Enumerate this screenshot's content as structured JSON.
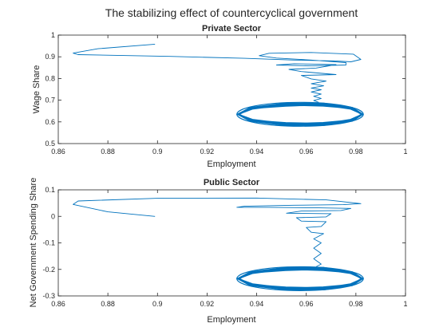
{
  "figure": {
    "title": "The stabilizing effect of countercyclical government"
  },
  "chart_data": [
    {
      "type": "line",
      "title": "Private Sector",
      "xlabel": "Employment",
      "ylabel": "Wage Share",
      "xlim": [
        0.86,
        1.0
      ],
      "ylim": [
        0.5,
        1.0
      ],
      "xticks": [
        "0.86",
        "0.88",
        "0.9",
        "0.92",
        "0.94",
        "0.96",
        "0.98",
        "1"
      ],
      "yticks": [
        "0.5",
        "0.6",
        "0.7",
        "0.8",
        "0.9",
        "1"
      ],
      "grid": false,
      "series": [
        {
          "color": "#0072BD",
          "points": [
            [
              0.899,
              0.958
            ],
            [
              0.876,
              0.937
            ],
            [
              0.866,
              0.917
            ],
            [
              0.868,
              0.91
            ],
            [
              0.905,
              0.902
            ],
            [
              0.935,
              0.893
            ],
            [
              0.955,
              0.885
            ],
            [
              0.972,
              0.881
            ],
            [
              0.978,
              0.877
            ],
            [
              0.982,
              0.888
            ],
            [
              0.979,
              0.912
            ],
            [
              0.962,
              0.92
            ],
            [
              0.945,
              0.916
            ],
            [
              0.941,
              0.905
            ],
            [
              0.948,
              0.894
            ],
            [
              0.962,
              0.885
            ],
            [
              0.976,
              0.873
            ],
            [
              0.976,
              0.862
            ],
            [
              0.962,
              0.858
            ],
            [
              0.948,
              0.862
            ],
            [
              0.955,
              0.868
            ],
            [
              0.972,
              0.864
            ],
            [
              0.964,
              0.848
            ],
            [
              0.953,
              0.842
            ],
            [
              0.958,
              0.832
            ],
            [
              0.972,
              0.818
            ],
            [
              0.958,
              0.814
            ],
            [
              0.962,
              0.798
            ],
            [
              0.968,
              0.788
            ],
            [
              0.962,
              0.776
            ],
            [
              0.967,
              0.766
            ],
            [
              0.962,
              0.756
            ],
            [
              0.966,
              0.748
            ],
            [
              0.962,
              0.738
            ],
            [
              0.966,
              0.728
            ],
            [
              0.963,
              0.718
            ],
            [
              0.966,
              0.708
            ],
            [
              0.963,
              0.698
            ],
            [
              0.965,
              0.69
            ]
          ]
        }
      ],
      "attractor": {
        "description": "dense limit cycle",
        "x_range": [
          0.932,
          0.983
        ],
        "y_range": [
          0.58,
          0.69
        ],
        "center": [
          0.96,
          0.635
        ]
      }
    },
    {
      "type": "line",
      "title": "Public Sector",
      "xlabel": "Employment",
      "ylabel": "Net Government Spending Share",
      "xlim": [
        0.86,
        1.0
      ],
      "ylim": [
        -0.3,
        0.1
      ],
      "xticks": [
        "0.86",
        "0.88",
        "0.9",
        "0.92",
        "0.94",
        "0.96",
        "0.98",
        "1"
      ],
      "yticks": [
        "-0.3",
        "-0.2",
        "-0.1",
        "0",
        "0.1"
      ],
      "grid": false,
      "series": [
        {
          "color": "#0072BD",
          "points": [
            [
              0.899,
              0.0
            ],
            [
              0.88,
              0.017
            ],
            [
              0.866,
              0.045
            ],
            [
              0.868,
              0.058
            ],
            [
              0.9,
              0.068
            ],
            [
              0.94,
              0.069
            ],
            [
              0.968,
              0.062
            ],
            [
              0.982,
              0.048
            ],
            [
              0.975,
              0.044
            ],
            [
              0.955,
              0.042
            ],
            [
              0.935,
              0.038
            ],
            [
              0.932,
              0.034
            ],
            [
              0.945,
              0.034
            ],
            [
              0.965,
              0.032
            ],
            [
              0.978,
              0.03
            ],
            [
              0.974,
              0.022
            ],
            [
              0.958,
              0.02
            ],
            [
              0.952,
              0.012
            ],
            [
              0.97,
              0.01
            ],
            [
              0.968,
              -0.002
            ],
            [
              0.956,
              -0.005
            ],
            [
              0.958,
              -0.018
            ],
            [
              0.968,
              -0.02
            ],
            [
              0.966,
              -0.038
            ],
            [
              0.96,
              -0.042
            ],
            [
              0.962,
              -0.06
            ],
            [
              0.967,
              -0.065
            ],
            [
              0.963,
              -0.085
            ],
            [
              0.966,
              -0.1
            ],
            [
              0.963,
              -0.12
            ],
            [
              0.966,
              -0.14
            ],
            [
              0.963,
              -0.16
            ],
            [
              0.966,
              -0.18
            ],
            [
              0.964,
              -0.19
            ]
          ]
        }
      ],
      "attractor": {
        "description": "dense limit cycle",
        "x_range": [
          0.932,
          0.983
        ],
        "y_range": [
          -0.28,
          -0.19
        ],
        "center": [
          0.96,
          -0.235
        ]
      }
    }
  ]
}
